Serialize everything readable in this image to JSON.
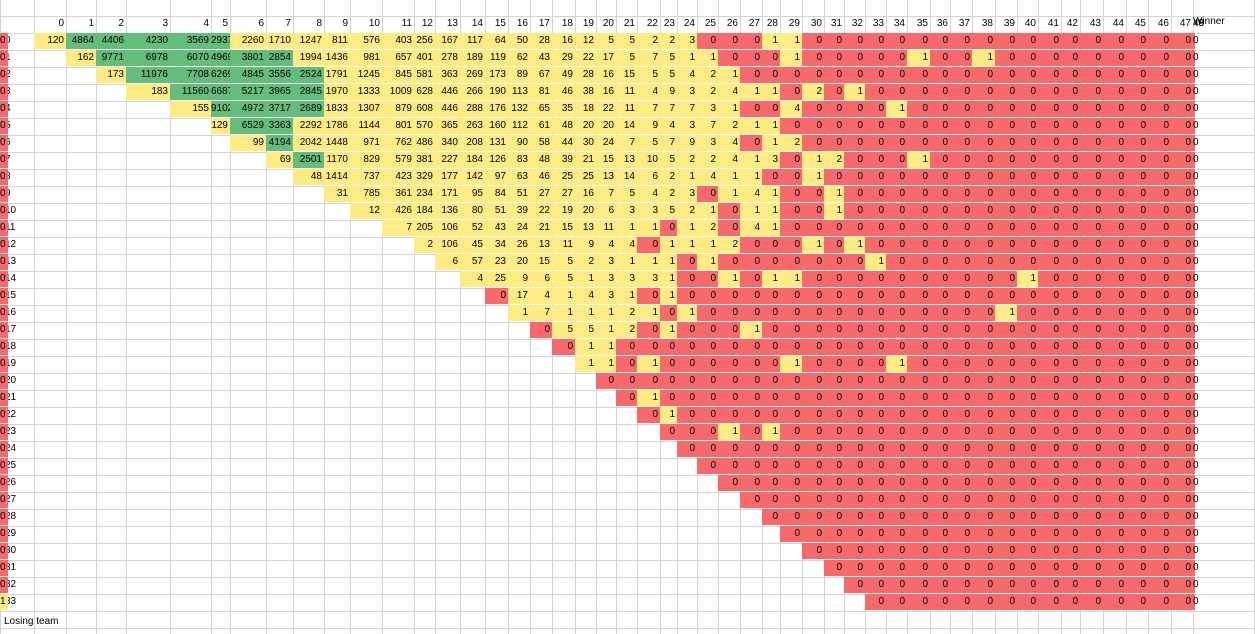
{
  "sheet": {
    "winner_label": "Winner",
    "losing_label": "Losing team",
    "colors": {
      "green": "#63be7b",
      "yellow": "#ffeb84",
      "red": "#f8696b"
    },
    "rows": [
      [
        120,
        4864,
        4406,
        4230,
        3569,
        2937,
        2260,
        1710,
        1247,
        811,
        576,
        403,
        256,
        167,
        117,
        64,
        50,
        28,
        16,
        12,
        5,
        5,
        2,
        2,
        3,
        0,
        0,
        0,
        1,
        1,
        0,
        0,
        0,
        0,
        0,
        0,
        0,
        0,
        0,
        0,
        0,
        0,
        0,
        0,
        0,
        0,
        0,
        0,
        0,
        0
      ],
      [
        162,
        9771,
        6978,
        6070,
        4969,
        3801,
        2854,
        1994,
        1436,
        981,
        657,
        401,
        278,
        189,
        119,
        62,
        43,
        29,
        22,
        17,
        5,
        7,
        5,
        1,
        1,
        0,
        0,
        0,
        1,
        0,
        0,
        0,
        0,
        0,
        1,
        0,
        0,
        1,
        0,
        0,
        0,
        0,
        0,
        0,
        0,
        0,
        0,
        0,
        0
      ],
      [
        173,
        11976,
        7708,
        6269,
        4845,
        3556,
        2524,
        1791,
        1245,
        845,
        581,
        363,
        269,
        173,
        89,
        67,
        49,
        28,
        16,
        15,
        5,
        5,
        4,
        2,
        1,
        0,
        0,
        0,
        0,
        0,
        0,
        0,
        0,
        0,
        0,
        0,
        0,
        0,
        0,
        0,
        0,
        0,
        0,
        0,
        0,
        0,
        0,
        0
      ],
      [
        183,
        11560,
        6687,
        5217,
        3965,
        2845,
        1970,
        1333,
        1009,
        628,
        446,
        266,
        190,
        113,
        81,
        46,
        38,
        16,
        11,
        4,
        9,
        3,
        2,
        4,
        1,
        1,
        0,
        2,
        0,
        1,
        0,
        0,
        0,
        0,
        0,
        0,
        0,
        0,
        0,
        0,
        0,
        0,
        0,
        0,
        0,
        0,
        0
      ],
      [
        155,
        9102,
        4972,
        3717,
        2689,
        1833,
        1307,
        879,
        608,
        446,
        288,
        176,
        132,
        65,
        35,
        18,
        22,
        11,
        7,
        7,
        7,
        3,
        1,
        0,
        0,
        4,
        0,
        0,
        0,
        0,
        1,
        0,
        0,
        0,
        0,
        0,
        0,
        0,
        0,
        0,
        0,
        0,
        0,
        0,
        0,
        0
      ],
      [
        129,
        6529,
        3363,
        2292,
        1786,
        1144,
        801,
        570,
        365,
        263,
        160,
        112,
        61,
        48,
        20,
        20,
        14,
        9,
        4,
        3,
        7,
        2,
        1,
        1,
        0,
        0,
        0,
        0,
        0,
        0,
        0,
        0,
        0,
        0,
        0,
        0,
        0,
        0,
        0,
        0,
        0,
        0,
        0,
        0,
        0
      ],
      [
        99,
        4194,
        2042,
        1448,
        971,
        762,
        486,
        340,
        208,
        131,
        90,
        58,
        44,
        30,
        24,
        7,
        5,
        7,
        9,
        3,
        4,
        0,
        1,
        2,
        0,
        0,
        0,
        0,
        0,
        0,
        0,
        0,
        0,
        0,
        0,
        0,
        0,
        0,
        0,
        0,
        0,
        0,
        0,
        0
      ],
      [
        69,
        2501,
        1170,
        829,
        579,
        381,
        227,
        184,
        126,
        83,
        48,
        39,
        21,
        15,
        13,
        10,
        5,
        2,
        2,
        4,
        1,
        3,
        0,
        1,
        2,
        0,
        0,
        0,
        1,
        0,
        0,
        0,
        0,
        0,
        0,
        0,
        0,
        0,
        0,
        0,
        0,
        0,
        0
      ],
      [
        48,
        1414,
        737,
        423,
        329,
        177,
        142,
        97,
        63,
        46,
        25,
        25,
        13,
        14,
        6,
        2,
        1,
        4,
        1,
        1,
        0,
        0,
        1,
        0,
        0,
        0,
        0,
        0,
        0,
        0,
        0,
        0,
        0,
        0,
        0,
        0,
        0,
        0,
        0,
        0,
        0,
        0
      ],
      [
        31,
        785,
        361,
        234,
        171,
        95,
        84,
        51,
        27,
        27,
        16,
        7,
        5,
        4,
        2,
        3,
        0,
        1,
        4,
        1,
        0,
        0,
        1,
        0,
        0,
        0,
        0,
        0,
        0,
        0,
        0,
        0,
        0,
        0,
        0,
        0,
        0,
        0,
        0,
        0,
        0
      ],
      [
        12,
        426,
        184,
        136,
        80,
        51,
        39,
        22,
        19,
        20,
        6,
        3,
        3,
        5,
        2,
        1,
        0,
        1,
        1,
        0,
        0,
        1,
        0,
        0,
        0,
        0,
        0,
        0,
        0,
        0,
        0,
        0,
        0,
        0,
        0,
        0,
        0,
        0,
        0,
        0
      ],
      [
        7,
        205,
        106,
        52,
        43,
        24,
        21,
        15,
        13,
        11,
        1,
        1,
        0,
        1,
        2,
        0,
        4,
        1,
        0,
        0,
        0,
        0,
        0,
        0,
        0,
        0,
        0,
        0,
        0,
        0,
        0,
        0,
        0,
        0,
        0,
        0,
        0,
        0,
        0
      ],
      [
        2,
        106,
        45,
        34,
        26,
        13,
        11,
        9,
        4,
        4,
        0,
        1,
        1,
        1,
        2,
        0,
        0,
        0,
        1,
        0,
        1,
        0,
        0,
        0,
        0,
        0,
        0,
        0,
        0,
        0,
        0,
        0,
        0,
        0,
        0,
        0,
        0,
        0
      ],
      [
        6,
        57,
        23,
        20,
        15,
        5,
        2,
        3,
        1,
        1,
        1,
        0,
        1,
        0,
        0,
        0,
        0,
        0,
        0,
        0,
        1,
        0,
        0,
        0,
        0,
        0,
        0,
        0,
        0,
        0,
        0,
        0,
        0,
        0,
        0,
        0,
        0
      ],
      [
        4,
        25,
        9,
        6,
        5,
        1,
        3,
        3,
        3,
        1,
        0,
        0,
        1,
        0,
        1,
        1,
        0,
        0,
        0,
        0,
        0,
        0,
        0,
        0,
        0,
        0,
        1,
        0,
        0,
        0,
        0,
        0,
        0,
        0,
        0,
        0
      ],
      [
        0,
        17,
        4,
        1,
        4,
        3,
        1,
        0,
        1,
        0,
        0,
        0,
        0,
        0,
        0,
        0,
        0,
        0,
        0,
        0,
        0,
        0,
        0,
        0,
        0,
        0,
        0,
        0,
        0,
        0,
        0,
        0,
        0,
        0,
        0
      ],
      [
        1,
        7,
        1,
        1,
        1,
        2,
        1,
        0,
        1,
        0,
        0,
        0,
        0,
        0,
        0,
        0,
        0,
        0,
        0,
        0,
        0,
        0,
        0,
        1,
        0,
        0,
        0,
        0,
        0,
        0,
        0,
        0,
        0,
        0
      ],
      [
        0,
        5,
        5,
        1,
        2,
        0,
        1,
        0,
        0,
        0,
        1,
        0,
        0,
        0,
        0,
        0,
        0,
        0,
        0,
        0,
        0,
        0,
        0,
        0,
        0,
        0,
        0,
        0,
        0,
        0,
        0,
        0,
        0
      ],
      [
        0,
        1,
        1,
        0,
        0,
        0,
        0,
        0,
        0,
        0,
        0,
        0,
        0,
        0,
        0,
        0,
        0,
        0,
        0,
        0,
        0,
        0,
        0,
        0,
        0,
        0,
        0,
        0,
        0,
        0,
        0,
        0
      ],
      [
        1,
        1,
        0,
        1,
        0,
        0,
        0,
        0,
        0,
        0,
        1,
        0,
        0,
        0,
        0,
        1,
        0,
        0,
        0,
        0,
        0,
        0,
        0,
        0,
        0,
        0,
        0,
        0,
        0,
        0,
        0
      ],
      [
        0,
        0,
        0,
        0,
        0,
        0,
        0,
        0,
        0,
        0,
        0,
        0,
        0,
        0,
        0,
        0,
        0,
        0,
        0,
        0,
        0,
        0,
        0,
        0,
        0,
        0,
        0,
        0,
        0,
        0
      ],
      [
        0,
        1,
        0,
        0,
        0,
        0,
        0,
        0,
        0,
        0,
        0,
        0,
        0,
        0,
        0,
        0,
        0,
        0,
        0,
        0,
        0,
        0,
        0,
        0,
        0,
        0,
        0,
        0,
        0
      ],
      [
        0,
        1,
        0,
        0,
        0,
        0,
        0,
        0,
        0,
        0,
        0,
        0,
        0,
        0,
        0,
        0,
        0,
        0,
        0,
        0,
        0,
        0,
        0,
        0,
        0,
        0,
        0,
        0
      ],
      [
        0,
        0,
        0,
        1,
        0,
        1,
        0,
        0,
        0,
        0,
        0,
        0,
        0,
        0,
        0,
        0,
        0,
        0,
        0,
        0,
        0,
        0,
        0,
        0,
        0,
        0,
        0
      ],
      [
        0,
        0,
        0,
        0,
        0,
        0,
        0,
        0,
        0,
        0,
        0,
        0,
        0,
        0,
        0,
        0,
        0,
        0,
        0,
        0,
        0,
        0,
        0,
        0,
        0,
        0
      ],
      [
        0,
        0,
        0,
        0,
        0,
        0,
        0,
        0,
        0,
        0,
        0,
        0,
        0,
        0,
        0,
        0,
        0,
        0,
        0,
        0,
        0,
        0,
        0,
        0,
        0
      ],
      [
        0,
        0,
        0,
        0,
        0,
        0,
        0,
        0,
        0,
        0,
        0,
        0,
        0,
        0,
        0,
        0,
        0,
        0,
        0,
        0,
        0,
        0,
        0,
        0
      ],
      [
        0,
        0,
        0,
        0,
        0,
        0,
        0,
        0,
        0,
        0,
        0,
        0,
        0,
        0,
        0,
        0,
        0,
        0,
        0,
        0,
        0,
        0,
        0
      ],
      [
        0,
        0,
        0,
        0,
        0,
        0,
        0,
        0,
        0,
        0,
        0,
        0,
        0,
        0,
        0,
        0,
        0,
        0,
        0,
        0,
        0,
        0
      ],
      [
        0,
        0,
        0,
        0,
        0,
        0,
        0,
        0,
        0,
        0,
        0,
        0,
        0,
        0,
        0,
        0,
        0,
        0,
        0,
        0,
        0
      ],
      [
        0,
        0,
        0,
        0,
        0,
        0,
        0,
        0,
        0,
        0,
        0,
        0,
        0,
        0,
        0,
        0,
        0,
        0,
        0,
        0
      ],
      [
        0,
        0,
        0,
        0,
        0,
        0,
        0,
        0,
        0,
        0,
        0,
        0,
        0,
        0,
        0,
        0,
        0,
        0,
        0
      ],
      [
        0,
        0,
        0,
        0,
        0,
        0,
        0,
        0,
        0,
        0,
        0,
        0,
        0,
        0,
        0,
        0,
        0,
        0
      ],
      [
        0,
        0,
        0,
        0,
        0,
        0,
        0,
        0,
        0,
        0,
        0,
        0,
        0,
        0,
        0,
        0,
        1
      ]
    ]
  }
}
